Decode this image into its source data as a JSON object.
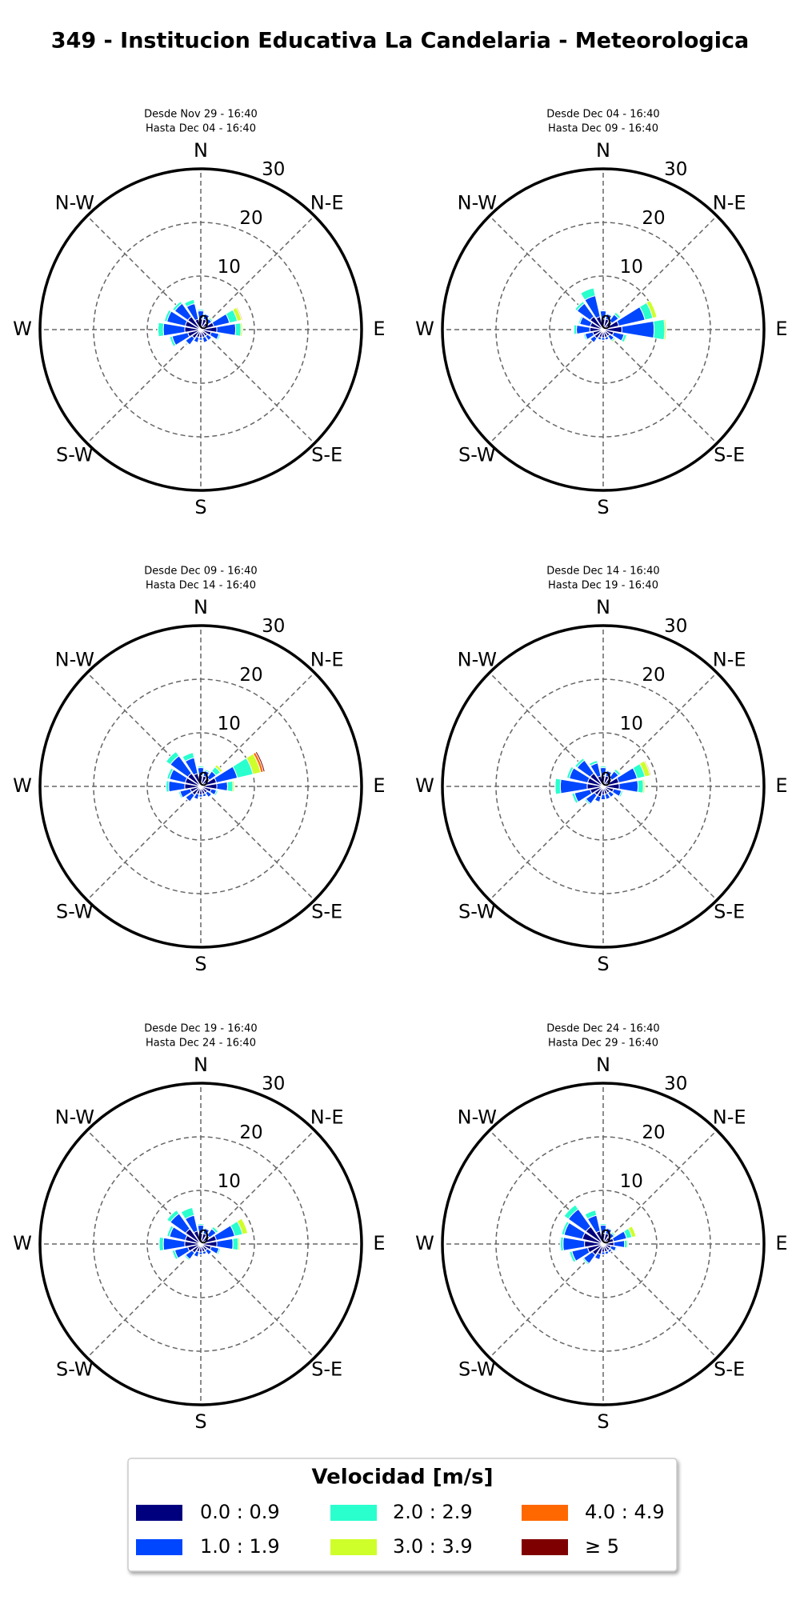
{
  "title": "349 - Institucion Educativa La Candelaria - Meteorologica",
  "legend": {
    "title": "Velocidad [m/s]",
    "entries": [
      {
        "name": "0.0 : 0.9",
        "color": "#00007f"
      },
      {
        "name": "1.0 : 1.9",
        "color": "#0046ff"
      },
      {
        "name": "2.0 : 2.9",
        "color": "#2affce"
      },
      {
        "name": "3.0 : 3.9",
        "color": "#ceff2a"
      },
      {
        "name": "4.0 : 4.9",
        "color": "#ff6800"
      },
      {
        "name": "≥  5",
        "color": "#7f0000"
      }
    ]
  },
  "chart_data": [
    {
      "type": "windrose",
      "subtitle": [
        "Desde Nov 29 - 16:40",
        "Hasta Dec 04 - 16:40"
      ],
      "axis_labels": [
        "N",
        "N-E",
        "E",
        "S-E",
        "S",
        "S-W",
        "W",
        "N-W"
      ],
      "rlim": [
        0,
        30
      ],
      "rticks": [
        0,
        10,
        20,
        30
      ],
      "x": [
        0,
        22.5,
        45,
        67.5,
        90,
        112.5,
        135,
        157.5,
        180,
        202.5,
        225,
        247.5,
        270,
        292.5,
        315,
        337.5
      ],
      "series": [
        {
          "values": [
            2,
            2,
            1.5,
            2.5,
            3,
            2,
            1.5,
            1.5,
            1.5,
            1.5,
            2,
            2.5,
            3,
            3,
            3,
            2
          ]
        },
        {
          "values": [
            1.5,
            1,
            1,
            3,
            3.5,
            1.5,
            1,
            1,
            0.5,
            1,
            1.5,
            3,
            4,
            3.5,
            3,
            3
          ]
        },
        {
          "values": [
            0.3,
            0.2,
            0.3,
            1.5,
            1,
            0.3,
            0,
            0,
            0,
            0,
            0.2,
            0.5,
            1,
            0.5,
            0.5,
            0.8
          ]
        },
        {
          "values": [
            0,
            0,
            0.2,
            0.8,
            0.3,
            0,
            0,
            0,
            0,
            0,
            0,
            0,
            0,
            0,
            0,
            0
          ]
        },
        {
          "values": [
            0,
            0,
            0,
            0.2,
            0,
            0,
            0,
            0,
            0,
            0,
            0,
            0,
            0,
            0,
            0,
            0
          ]
        },
        {
          "values": [
            0,
            0,
            0,
            0,
            0,
            0,
            0,
            0,
            0,
            0,
            0,
            0,
            0,
            0,
            0,
            0
          ]
        }
      ]
    },
    {
      "type": "windrose",
      "subtitle": [
        "Desde Dec 04 - 16:40",
        "Hasta Dec 09 - 16:40"
      ],
      "axis_labels": [
        "N",
        "N-E",
        "E",
        "S-E",
        "S",
        "S-W",
        "W",
        "N-W"
      ],
      "rlim": [
        0,
        30
      ],
      "rticks": [
        0,
        10,
        20,
        30
      ],
      "x": [
        0,
        22.5,
        45,
        67.5,
        90,
        112.5,
        135,
        157.5,
        180,
        202.5,
        225,
        247.5,
        270,
        292.5,
        315,
        337.5
      ],
      "series": [
        {
          "values": [
            2,
            2,
            2,
            3,
            3.5,
            2,
            1.5,
            1.5,
            1.5,
            1.5,
            2,
            2,
            2.5,
            2.5,
            3,
            2.5
          ]
        },
        {
          "values": [
            1.5,
            1,
            1.5,
            5,
            6,
            2,
            1,
            0.5,
            0.5,
            0.5,
            1,
            1.5,
            2.5,
            2,
            3,
            4
          ]
        },
        {
          "values": [
            0.2,
            0.2,
            0.5,
            1.5,
            2,
            0.5,
            0.3,
            0,
            0,
            0,
            0,
            0.3,
            0.5,
            0.3,
            0.5,
            1.5
          ]
        },
        {
          "values": [
            0,
            0,
            0.2,
            0.8,
            0.3,
            0.2,
            0.2,
            0,
            0,
            0,
            0,
            0,
            0,
            0,
            0,
            0
          ]
        },
        {
          "values": [
            0,
            0,
            0,
            0,
            0,
            0,
            0,
            0,
            0,
            0,
            0,
            0,
            0,
            0,
            0,
            0
          ]
        },
        {
          "values": [
            0,
            0,
            0,
            0,
            0,
            0,
            0,
            0,
            0,
            0,
            0,
            0,
            0,
            0,
            0,
            0
          ]
        }
      ]
    },
    {
      "type": "windrose",
      "subtitle": [
        "Desde Dec 09 - 16:40",
        "Hasta Dec 14 - 16:40"
      ],
      "axis_labels": [
        "N",
        "N-E",
        "E",
        "S-E",
        "S",
        "S-W",
        "W",
        "N-W"
      ],
      "rlim": [
        0,
        30
      ],
      "rticks": [
        0,
        10,
        20,
        30
      ],
      "x": [
        0,
        22.5,
        45,
        67.5,
        90,
        112.5,
        135,
        157.5,
        180,
        202.5,
        225,
        247.5,
        270,
        292.5,
        315,
        337.5
      ],
      "series": [
        {
          "values": [
            2,
            2,
            2,
            3,
            3,
            2,
            1.5,
            1.5,
            1.5,
            1.5,
            2,
            2,
            3,
            3,
            3,
            2.5
          ]
        },
        {
          "values": [
            1.5,
            1,
            1.5,
            4,
            2,
            1,
            1,
            0.5,
            0.5,
            1,
            1.5,
            2,
            3,
            3,
            4,
            3
          ]
        },
        {
          "values": [
            0.3,
            0.3,
            1,
            3,
            1,
            0.3,
            0,
            0,
            0,
            0,
            0,
            0.3,
            0.5,
            0.5,
            1,
            1
          ]
        },
        {
          "values": [
            0,
            0,
            0.5,
            1.5,
            0.3,
            0,
            0,
            0,
            0,
            0,
            0,
            0,
            0,
            0,
            0,
            0
          ]
        },
        {
          "values": [
            0,
            0,
            0,
            0.5,
            0,
            0,
            0,
            0,
            0,
            0,
            0,
            0,
            0,
            0,
            0,
            0
          ]
        },
        {
          "values": [
            0,
            0,
            0,
            0.3,
            0,
            0,
            0,
            0,
            0,
            0,
            0,
            0,
            0,
            0,
            0,
            0
          ]
        }
      ]
    },
    {
      "type": "windrose",
      "subtitle": [
        "Desde Dec 14 - 16:40",
        "Hasta Dec 19 - 16:40"
      ],
      "axis_labels": [
        "N",
        "N-E",
        "E",
        "S-E",
        "S",
        "S-W",
        "W",
        "N-W"
      ],
      "rlim": [
        0,
        30
      ],
      "rticks": [
        0,
        10,
        20,
        30
      ],
      "x": [
        0,
        22.5,
        45,
        67.5,
        90,
        112.5,
        135,
        157.5,
        180,
        202.5,
        225,
        247.5,
        270,
        292.5,
        315,
        337.5
      ],
      "series": [
        {
          "values": [
            2,
            2,
            2,
            3,
            3,
            2,
            1.5,
            1.5,
            1.5,
            2,
            2,
            2.5,
            3,
            3,
            3,
            2
          ]
        },
        {
          "values": [
            1.5,
            1,
            1.5,
            3.5,
            3.5,
            1.5,
            1,
            1,
            1,
            1,
            2,
            3,
            5,
            3.5,
            3,
            2.5
          ]
        },
        {
          "values": [
            0.3,
            0.2,
            0.5,
            1.5,
            1,
            0.3,
            0,
            0,
            0,
            0,
            0.3,
            0.5,
            1,
            0.5,
            0.5,
            0.5
          ]
        },
        {
          "values": [
            0,
            0,
            0.2,
            1,
            0.3,
            0,
            0,
            0,
            0,
            0,
            0,
            0,
            0,
            0,
            0,
            0
          ]
        },
        {
          "values": [
            0,
            0,
            0,
            0.2,
            0,
            0,
            0,
            0,
            0,
            0,
            0,
            0,
            0,
            0,
            0,
            0
          ]
        },
        {
          "values": [
            0,
            0,
            0,
            0,
            0,
            0,
            0,
            0,
            0,
            0,
            0,
            0,
            0,
            0,
            0,
            0
          ]
        }
      ]
    },
    {
      "type": "windrose",
      "subtitle": [
        "Desde Dec 19 - 16:40",
        "Hasta Dec 24 - 16:40"
      ],
      "axis_labels": [
        "N",
        "N-E",
        "E",
        "S-E",
        "S",
        "S-W",
        "W",
        "N-W"
      ],
      "rlim": [
        0,
        30
      ],
      "rticks": [
        0,
        10,
        20,
        30
      ],
      "x": [
        0,
        22.5,
        45,
        67.5,
        90,
        112.5,
        135,
        157.5,
        180,
        202.5,
        225,
        247.5,
        270,
        292.5,
        315,
        337.5
      ],
      "series": [
        {
          "values": [
            2,
            2,
            2,
            3,
            3,
            2,
            1.5,
            1.5,
            1.5,
            1.5,
            2,
            2.5,
            3,
            3,
            3.5,
            2.5
          ]
        },
        {
          "values": [
            1.5,
            1,
            1.5,
            3.5,
            3,
            1.5,
            1,
            0.5,
            0.5,
            1,
            1.5,
            2.5,
            4,
            3,
            3.5,
            3
          ]
        },
        {
          "values": [
            0.3,
            0.2,
            0.5,
            1.5,
            1,
            0.3,
            0,
            0,
            0,
            0,
            0.3,
            0.5,
            0.8,
            0.5,
            0.8,
            1.5
          ]
        },
        {
          "values": [
            0,
            0,
            0.2,
            1,
            0.3,
            0,
            0,
            0,
            0,
            0,
            0,
            0,
            0,
            0,
            0,
            0
          ]
        },
        {
          "values": [
            0,
            0,
            0,
            0,
            0,
            0,
            0,
            0,
            0,
            0,
            0,
            0,
            0,
            0,
            0,
            0
          ]
        },
        {
          "values": [
            0,
            0,
            0,
            0,
            0,
            0,
            0,
            0,
            0,
            0,
            0,
            0,
            0,
            0,
            0,
            0
          ]
        }
      ]
    },
    {
      "type": "windrose",
      "subtitle": [
        "Desde Dec 24 - 16:40",
        "Hasta Dec 29 - 16:40"
      ],
      "axis_labels": [
        "N",
        "N-E",
        "E",
        "S-E",
        "S",
        "S-W",
        "W",
        "N-W"
      ],
      "rlim": [
        0,
        30
      ],
      "rticks": [
        0,
        10,
        20,
        30
      ],
      "x": [
        0,
        22.5,
        45,
        67.5,
        90,
        112.5,
        135,
        157.5,
        180,
        202.5,
        225,
        247.5,
        270,
        292.5,
        315,
        337.5
      ],
      "series": [
        {
          "values": [
            2,
            2,
            1.5,
            2,
            2,
            1.5,
            1.5,
            1.5,
            1.5,
            2,
            2.5,
            3,
            3.5,
            4,
            4,
            2.5
          ]
        },
        {
          "values": [
            1.5,
            1,
            1,
            2.5,
            2,
            1,
            0.5,
            0.5,
            0.5,
            1,
            2,
            3,
            4,
            3.5,
            4,
            3
          ]
        },
        {
          "values": [
            0.3,
            0.2,
            0.3,
            1,
            0.5,
            0.2,
            0,
            0,
            0,
            0,
            0.3,
            0.5,
            0.5,
            0.5,
            1,
            1
          ]
        },
        {
          "values": [
            0,
            0,
            0.2,
            0.8,
            0.2,
            0,
            0,
            0,
            0,
            0,
            0,
            0,
            0,
            0,
            0,
            0
          ]
        },
        {
          "values": [
            0,
            0,
            0,
            0,
            0,
            0,
            0,
            0,
            0,
            0,
            0,
            0,
            0,
            0,
            0,
            0
          ]
        },
        {
          "values": [
            0,
            0,
            0,
            0,
            0,
            0,
            0,
            0,
            0,
            0,
            0,
            0,
            0,
            0,
            0,
            0
          ]
        }
      ]
    }
  ]
}
